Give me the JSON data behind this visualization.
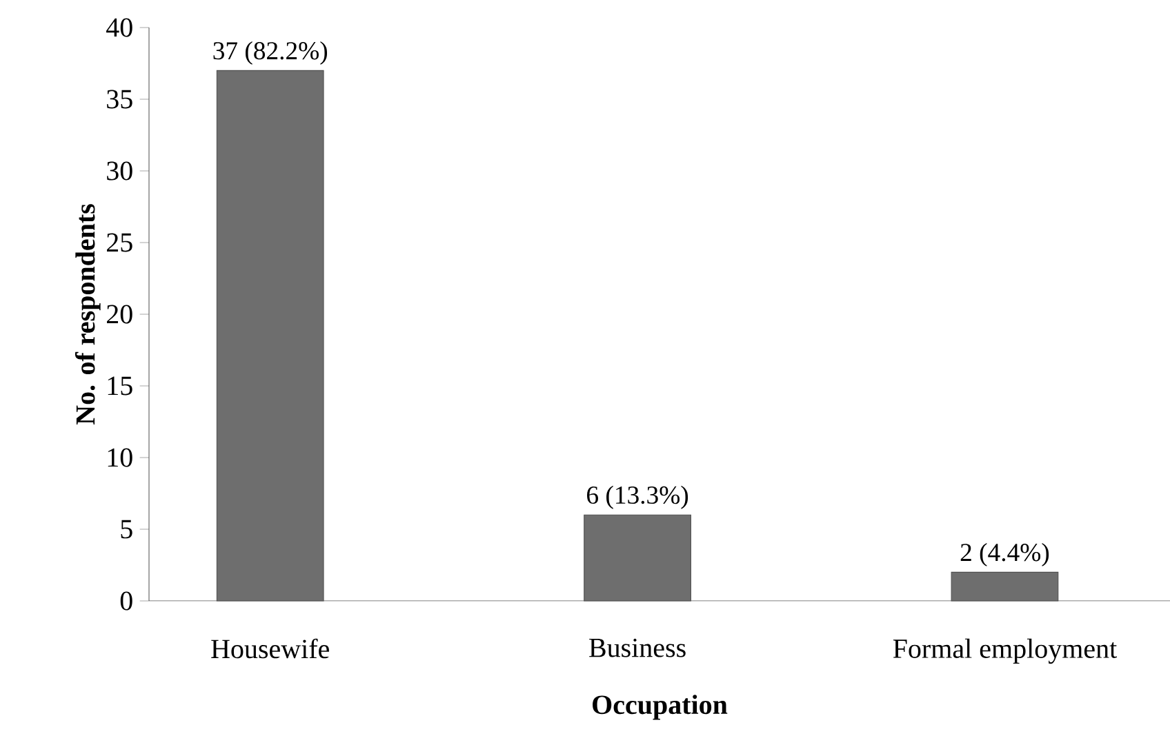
{
  "chart_data": {
    "type": "bar",
    "xlabel": "Occupation",
    "ylabel": "No. of respondents",
    "categories": [
      "Housewife",
      "Business",
      "Formal employment"
    ],
    "values": [
      37,
      6,
      2
    ],
    "value_labels": [
      "37 (82.2%)",
      "6 (13.3%)",
      "2 (4.4%)"
    ],
    "color": "#6e6e6e",
    "ylim": [
      0,
      40
    ],
    "yticks": [
      0,
      5,
      10,
      15,
      20,
      25,
      30,
      35,
      40
    ]
  }
}
